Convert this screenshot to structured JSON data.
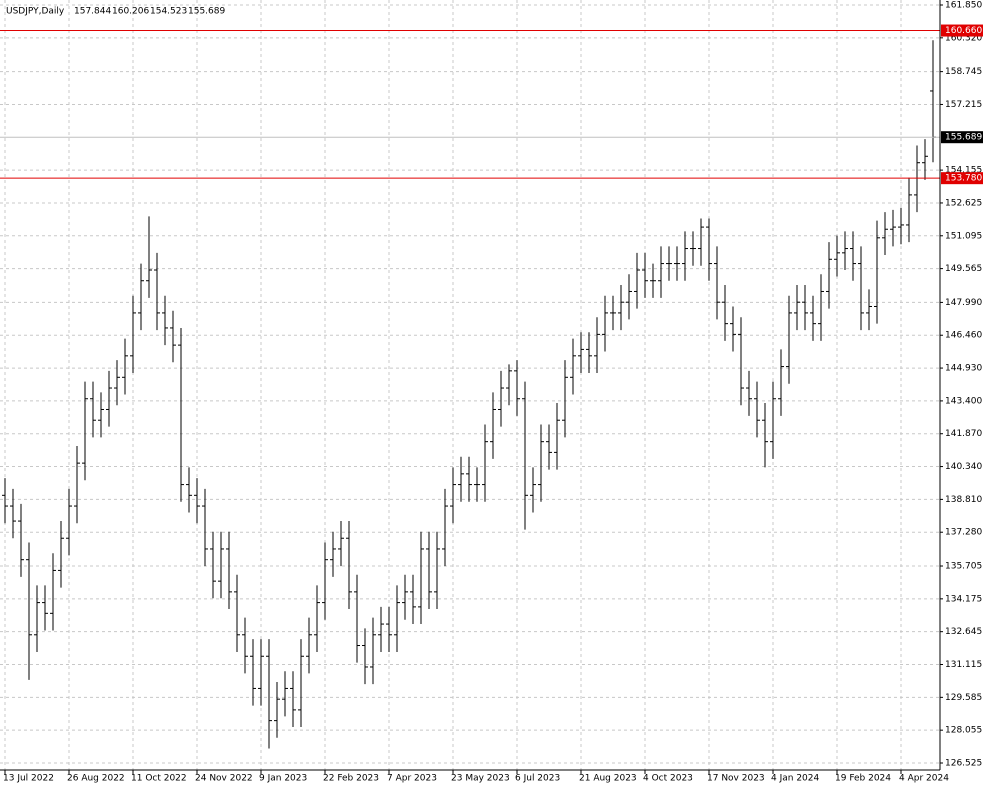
{
  "chart_data": {
    "type": "ohlc",
    "title": "USDJPY,Daily",
    "categories": [
      "13 Jul 2022",
      null,
      null,
      null,
      null,
      null,
      null,
      null,
      "26 Aug 2022",
      null,
      null,
      null,
      null,
      null,
      null,
      null,
      "11 Oct 2022",
      null,
      null,
      null,
      null,
      null,
      null,
      null,
      "24 Nov 2022",
      null,
      null,
      null,
      null,
      null,
      null,
      null,
      "9 Jan 2023",
      null,
      null,
      null,
      null,
      null,
      null,
      null,
      "22 Feb 2023",
      null,
      null,
      null,
      null,
      null,
      null,
      null,
      "7 Apr 2023",
      null,
      null,
      null,
      null,
      null,
      null,
      null,
      "23 May 2023",
      null,
      null,
      null,
      null,
      null,
      null,
      null,
      "6 Jul 2023",
      null,
      null,
      null,
      null,
      null,
      null,
      null,
      "21 Aug 2023",
      null,
      null,
      null,
      null,
      null,
      null,
      null,
      "4 Oct 2023",
      null,
      null,
      null,
      null,
      null,
      null,
      null,
      "17 Nov 2023",
      null,
      null,
      null,
      null,
      null,
      null,
      null,
      "4 Jan 2024",
      null,
      null,
      null,
      null,
      null,
      null,
      null,
      "19 Feb 2024",
      null,
      null,
      null,
      null,
      null,
      null,
      null,
      "4 Apr 2024",
      null,
      null,
      null,
      null
    ],
    "open": [
      139.0,
      138.5,
      137.8,
      136.0,
      132.5,
      134.0,
      133.5,
      135.5,
      137.0,
      138.5,
      140.5,
      143.5,
      142.5,
      143.0,
      144.0,
      144.5,
      145.5,
      147.5,
      149.0,
      149.5,
      147.5,
      146.8,
      146.0,
      139.5,
      139.0,
      138.5,
      136.5,
      135.0,
      136.5,
      134.5,
      132.5,
      131.5,
      130.0,
      131.5,
      128.5,
      129.5,
      130.0,
      129.0,
      131.5,
      132.5,
      134.0,
      136.0,
      136.5,
      137.0,
      134.5,
      132.0,
      131.0,
      132.5,
      133.0,
      132.5,
      134.0,
      134.5,
      133.8,
      136.5,
      134.5,
      136.5,
      138.5,
      139.5,
      140.0,
      139.5,
      139.5,
      141.5,
      143.0,
      144.0,
      144.8,
      143.5,
      139.0,
      139.5,
      141.5,
      141.0,
      142.5,
      144.5,
      145.5,
      145.8,
      145.5,
      146.5,
      147.5,
      147.5,
      148.0,
      148.5,
      149.5,
      149.0,
      149.0,
      149.8,
      149.8,
      149.8,
      150.5,
      150.5,
      151.5,
      149.8,
      148.0,
      147.0,
      146.5,
      144.0,
      143.5,
      142.5,
      141.5,
      143.5,
      145.0,
      147.5,
      148.0,
      147.5,
      147.0,
      148.5,
      150.0,
      150.3,
      150.5,
      149.8,
      147.5,
      147.8,
      151.0,
      151.4,
      151.5,
      151.6,
      153.0,
      154.5,
      157.844
    ],
    "high": [
      139.8,
      139.3,
      138.6,
      136.8,
      134.8,
      134.8,
      136.3,
      137.8,
      139.3,
      141.3,
      144.3,
      144.3,
      143.8,
      144.8,
      145.3,
      146.3,
      148.3,
      149.8,
      152.0,
      150.3,
      148.3,
      147.6,
      146.8,
      140.3,
      139.8,
      139.3,
      137.3,
      137.3,
      137.3,
      135.3,
      133.3,
      132.3,
      132.3,
      132.3,
      130.3,
      130.8,
      130.8,
      132.3,
      133.3,
      134.8,
      136.8,
      137.3,
      137.8,
      137.8,
      135.3,
      132.8,
      133.3,
      133.8,
      133.8,
      134.8,
      135.3,
      135.3,
      137.3,
      137.3,
      137.3,
      139.3,
      140.3,
      140.8,
      140.8,
      140.3,
      142.3,
      143.8,
      144.8,
      145.1,
      145.3,
      144.3,
      140.3,
      142.3,
      142.3,
      143.3,
      145.3,
      146.3,
      146.6,
      146.6,
      147.3,
      148.3,
      148.3,
      148.8,
      149.3,
      150.3,
      150.3,
      149.8,
      150.6,
      150.6,
      150.6,
      151.3,
      151.3,
      151.9,
      151.9,
      150.6,
      148.8,
      147.8,
      147.3,
      144.8,
      144.3,
      143.3,
      144.3,
      145.8,
      148.3,
      148.8,
      148.8,
      148.3,
      149.3,
      150.8,
      151.1,
      151.3,
      151.3,
      150.6,
      148.6,
      151.8,
      152.2,
      152.3,
      152.4,
      153.8,
      155.3,
      155.6,
      160.206
    ],
    "low": [
      137.7,
      137.0,
      135.2,
      130.4,
      131.7,
      132.7,
      132.7,
      134.7,
      136.2,
      137.7,
      139.7,
      141.7,
      141.7,
      142.2,
      143.2,
      143.7,
      144.7,
      146.7,
      148.2,
      146.7,
      146.0,
      145.2,
      138.7,
      138.2,
      137.7,
      135.7,
      134.2,
      134.2,
      133.7,
      131.7,
      130.7,
      129.2,
      129.2,
      127.2,
      127.7,
      128.7,
      128.2,
      128.2,
      130.7,
      131.7,
      133.2,
      135.2,
      135.7,
      133.7,
      131.2,
      130.2,
      130.2,
      131.7,
      131.7,
      131.7,
      133.2,
      133.0,
      133.0,
      133.7,
      133.7,
      135.7,
      137.7,
      138.7,
      138.7,
      138.7,
      138.7,
      140.7,
      142.2,
      143.2,
      142.7,
      137.4,
      138.2,
      138.7,
      140.2,
      140.2,
      141.7,
      143.7,
      144.7,
      144.7,
      144.7,
      145.7,
      146.7,
      146.7,
      147.2,
      147.7,
      148.2,
      148.2,
      148.2,
      149.0,
      149.0,
      149.0,
      149.7,
      149.7,
      149.0,
      147.2,
      146.2,
      145.7,
      143.2,
      142.7,
      141.7,
      140.3,
      140.7,
      142.7,
      144.2,
      146.7,
      146.7,
      146.2,
      146.2,
      147.7,
      149.2,
      149.5,
      149.0,
      146.7,
      146.7,
      147.0,
      150.2,
      150.6,
      150.7,
      150.8,
      152.2,
      153.7,
      154.523
    ],
    "close": [
      138.5,
      137.8,
      136.0,
      132.5,
      134.0,
      133.5,
      135.5,
      137.0,
      138.5,
      140.5,
      143.5,
      142.5,
      143.0,
      144.0,
      144.5,
      145.5,
      147.5,
      149.0,
      149.5,
      147.5,
      146.8,
      146.0,
      139.5,
      139.0,
      138.5,
      136.5,
      135.0,
      136.5,
      134.5,
      132.5,
      131.5,
      130.0,
      131.5,
      128.5,
      129.5,
      130.0,
      129.0,
      131.5,
      132.5,
      134.0,
      136.0,
      136.5,
      137.0,
      134.5,
      132.0,
      131.0,
      132.5,
      133.0,
      132.5,
      134.0,
      134.5,
      133.8,
      136.5,
      134.5,
      136.5,
      138.5,
      139.5,
      140.0,
      139.5,
      139.5,
      141.5,
      143.0,
      144.0,
      144.8,
      143.5,
      139.0,
      139.5,
      141.5,
      141.0,
      142.5,
      144.5,
      145.5,
      145.8,
      145.5,
      146.5,
      147.5,
      147.5,
      148.0,
      148.5,
      149.5,
      149.0,
      149.0,
      149.8,
      149.8,
      149.8,
      150.5,
      150.5,
      151.5,
      149.8,
      148.0,
      147.0,
      146.5,
      144.0,
      143.5,
      142.5,
      141.5,
      143.5,
      145.0,
      147.5,
      148.0,
      147.5,
      147.0,
      148.5,
      150.0,
      150.3,
      150.5,
      149.8,
      147.5,
      147.8,
      151.0,
      151.4,
      151.5,
      151.6,
      153.0,
      154.5,
      154.8,
      155.689
    ],
    "color": "#000000",
    "ylim": [
      126.525,
      161.85
    ],
    "yticks": [
      {
        "value": 161.85,
        "label": "161.850"
      },
      {
        "value": 160.32,
        "label": "160.320"
      },
      158.745,
      157.215,
      154.155,
      152.625,
      151.095,
      149.565,
      {
        "value": 147.99,
        "label": "147.990"
      },
      {
        "value": 146.46,
        "label": "146.460"
      },
      {
        "value": 144.93,
        "label": "144.930"
      },
      {
        "value": 143.4,
        "label": "143.400"
      },
      {
        "value": 141.87,
        "label": "141.870"
      },
      {
        "value": 140.34,
        "label": "140.340"
      },
      {
        "value": 138.81,
        "label": "138.810"
      },
      {
        "value": 137.28,
        "label": "137.280"
      },
      135.705,
      134.175,
      132.645,
      131.115,
      129.585,
      128.055,
      126.525
    ],
    "grid": true,
    "hlines": [
      {
        "value": 160.66,
        "label": "160.660",
        "color": "#e00000"
      },
      {
        "value": 153.78,
        "label": "153.780",
        "color": "#e00000"
      }
    ],
    "last_price_color": "#c0c0c0"
  }
}
